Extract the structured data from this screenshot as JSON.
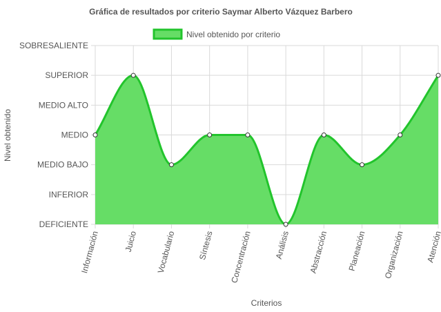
{
  "colors": {
    "fill": "#66dd66",
    "line": "#22c42c",
    "grid": "#d9d9d9",
    "point_fill": "#ffffff",
    "point_stroke": "#333333",
    "text": "#555555"
  },
  "chart_data": {
    "type": "area",
    "title": "Gráfica de resultados por criterio Saymar Alberto Vázquez Barbero",
    "xlabel": "Criterios",
    "ylabel": "Nivel obtenido",
    "legend_position": "top-center",
    "grid": true,
    "y_levels": [
      "DEFICIENTE",
      "INFERIOR",
      "MEDIO BAJO",
      "MEDIO",
      "MEDIO ALTO",
      "SUPERIOR",
      "SOBRESALIENTE"
    ],
    "categories": [
      "Información",
      "Juicio",
      "Vocabulario",
      "Síntesis",
      "Concentración",
      "Análisis",
      "Abstracción",
      "Planeación",
      "Organización",
      "Atención"
    ],
    "series": [
      {
        "name": "Nivel obtenido por criterio",
        "values": [
          "MEDIO",
          "SUPERIOR",
          "MEDIO BAJO",
          "MEDIO",
          "MEDIO",
          "DEFICIENTE",
          "MEDIO",
          "MEDIO BAJO",
          "MEDIO",
          "SUPERIOR"
        ]
      }
    ]
  }
}
